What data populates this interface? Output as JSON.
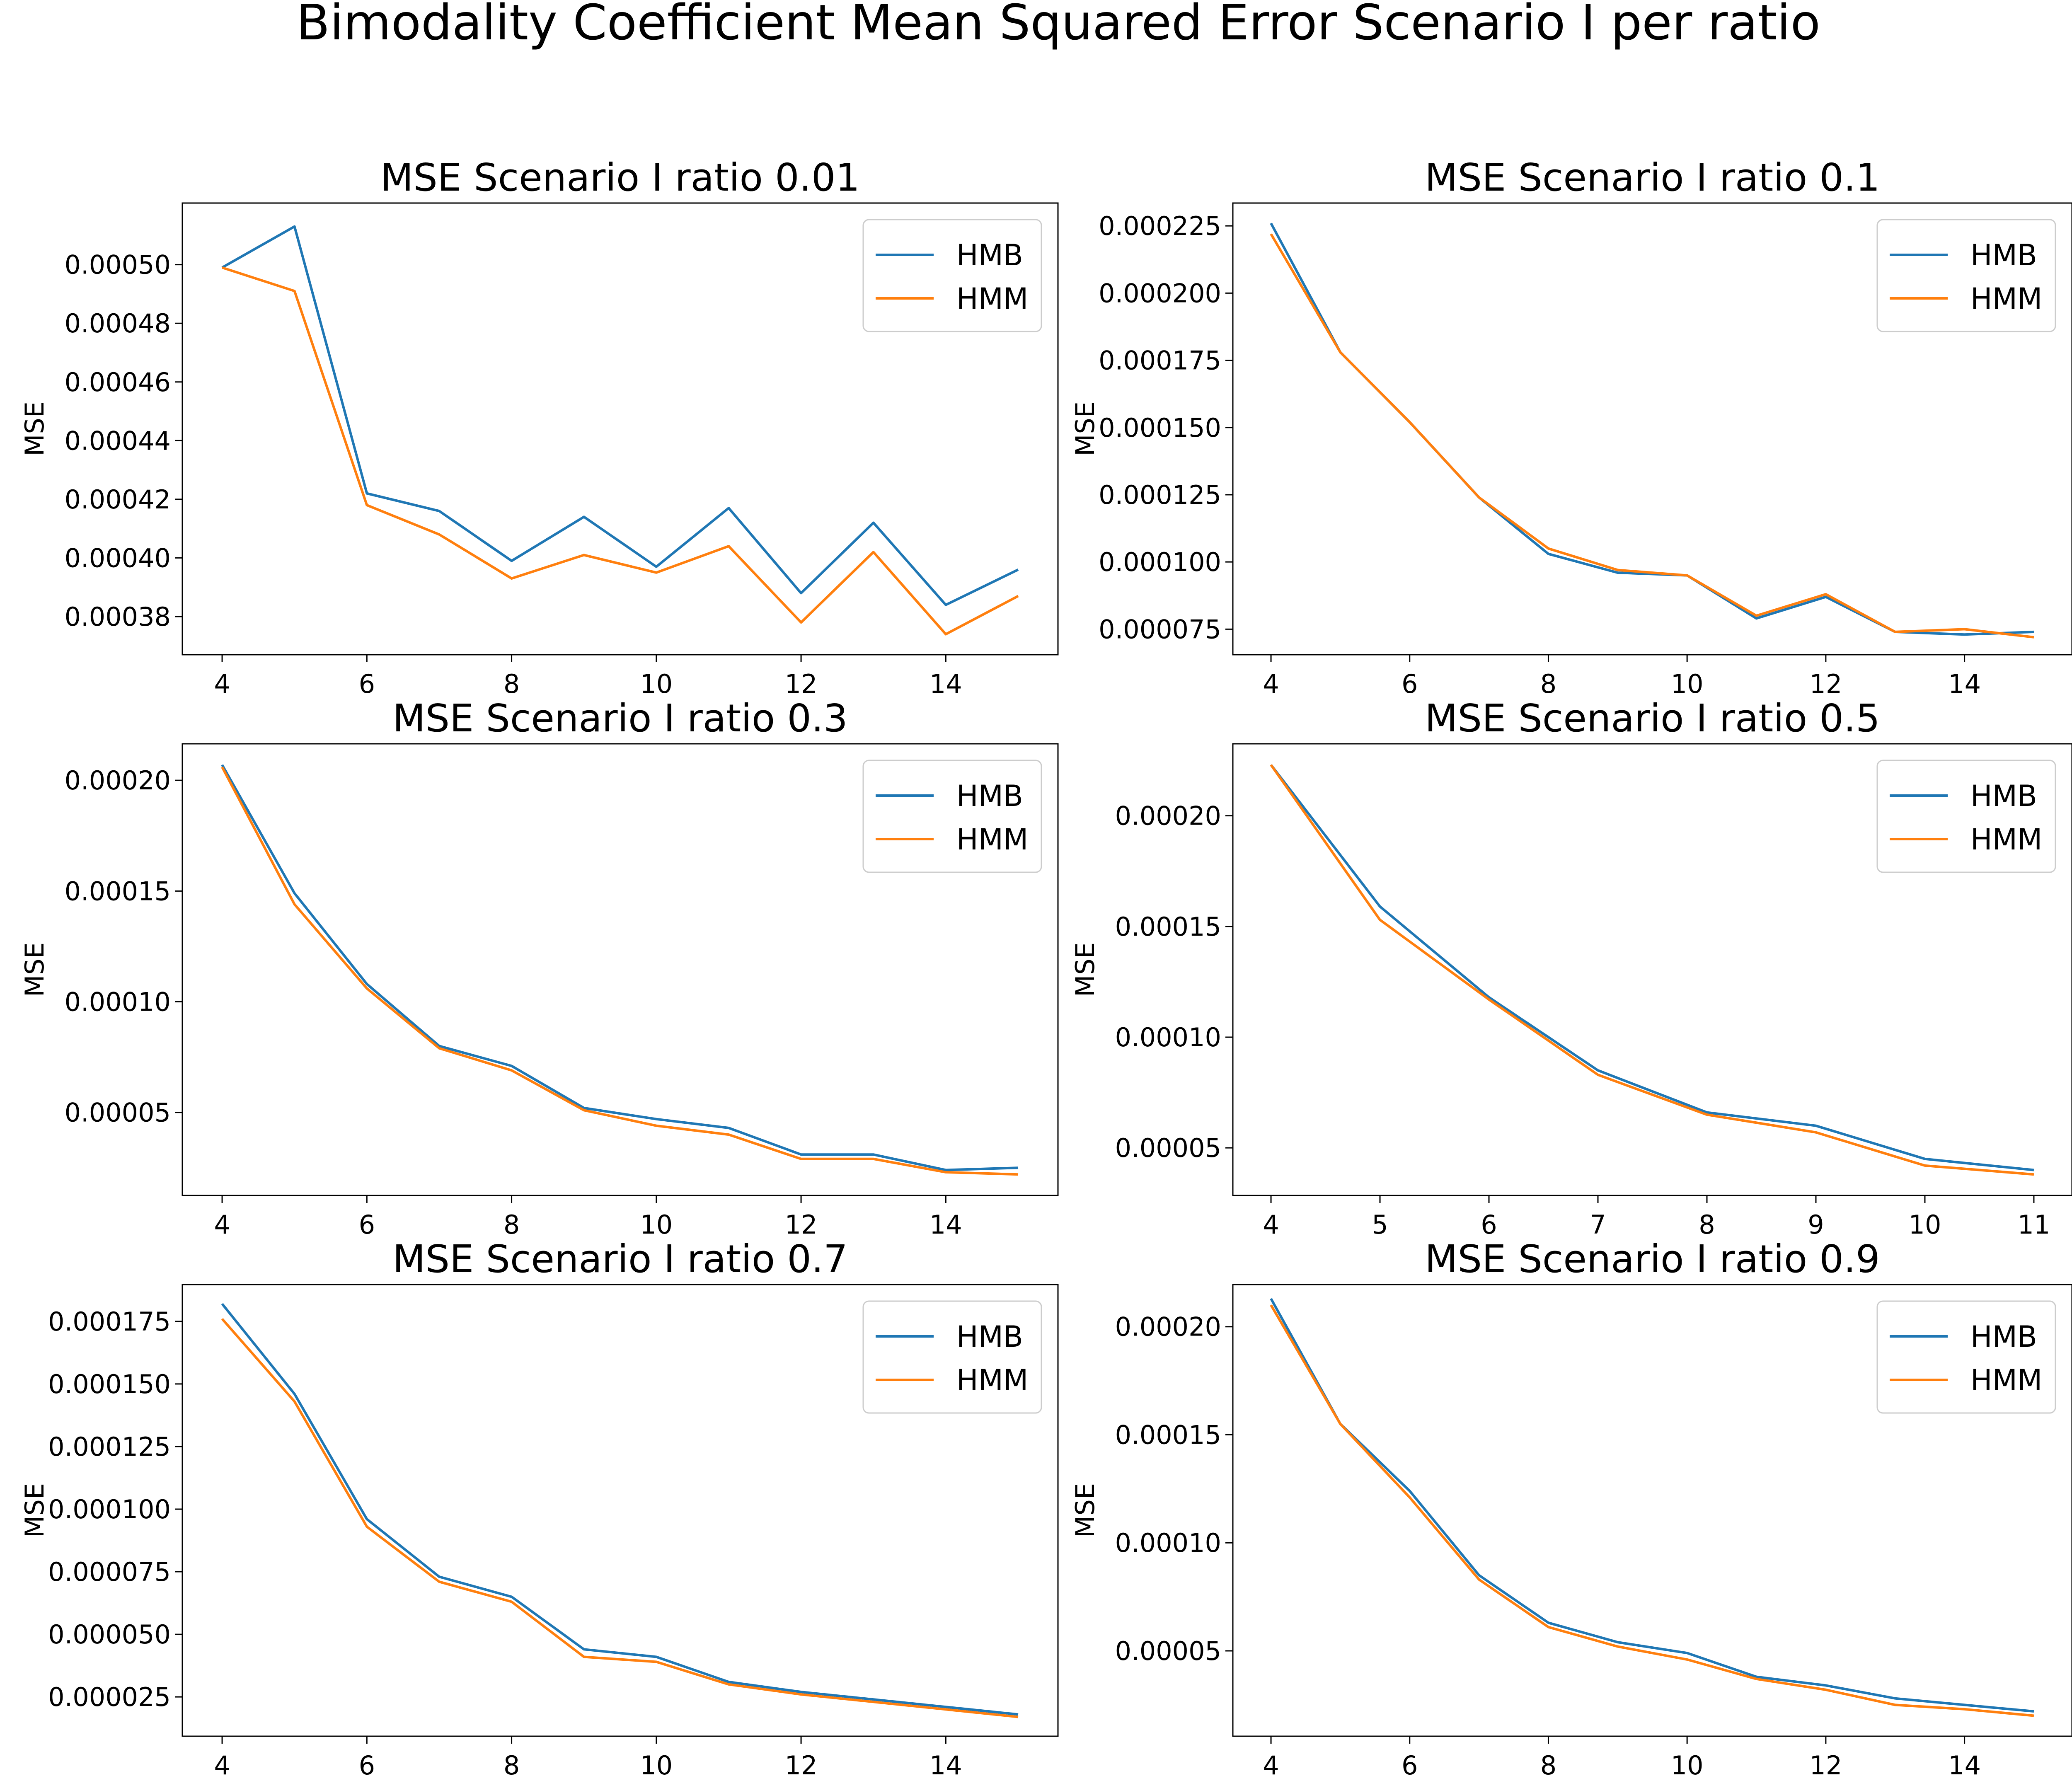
{
  "figure": {
    "title": "Bimodality Coefficient Mean Squared Error Scenario I per ratio"
  },
  "colors": {
    "HMB": "#1f77b4",
    "HMM": "#ff7f0e"
  },
  "chart_data": [
    {
      "type": "line",
      "title": "MSE Scenario I ratio 0.01",
      "xlabel": "",
      "ylabel": "MSE",
      "x": [
        4,
        5,
        6,
        7,
        8,
        9,
        10,
        11,
        12,
        13,
        14,
        15
      ],
      "xlim": [
        3.45,
        15.55
      ],
      "ylim": [
        0.000367,
        0.000521
      ],
      "xticks": [
        4,
        6,
        8,
        10,
        12,
        14
      ],
      "yticks": [
        "0.00038",
        "0.00040",
        "0.00042",
        "0.00044",
        "0.00046",
        "0.00048",
        "0.00050"
      ],
      "legend": "upper right",
      "series": [
        {
          "name": "HMB",
          "values": [
            0.000499,
            0.000513,
            0.000422,
            0.000416,
            0.000399,
            0.000414,
            0.000397,
            0.000417,
            0.000388,
            0.000412,
            0.000384,
            0.000396
          ]
        },
        {
          "name": "HMM",
          "values": [
            0.000499,
            0.000491,
            0.000418,
            0.000408,
            0.000393,
            0.000401,
            0.000395,
            0.000404,
            0.000378,
            0.000402,
            0.000374,
            0.000387
          ]
        }
      ]
    },
    {
      "type": "line",
      "title": "MSE Scenario I ratio 0.1",
      "xlabel": "",
      "ylabel": "MSE",
      "x": [
        4,
        5,
        6,
        7,
        8,
        9,
        10,
        11,
        12,
        13,
        14,
        15
      ],
      "xlim": [
        3.45,
        15.55
      ],
      "ylim": [
        6.55e-05,
        0.0002335
      ],
      "xticks": [
        4,
        6,
        8,
        10,
        12,
        14
      ],
      "yticks": [
        "0.000075",
        "0.000100",
        "0.000125",
        "0.000150",
        "0.000175",
        "0.000200",
        "0.000225"
      ],
      "legend": "upper right",
      "series": [
        {
          "name": "HMB",
          "values": [
            0.000226,
            0.000178,
            0.000152,
            0.000124,
            0.000103,
            9.6e-05,
            9.5e-05,
            7.9e-05,
            8.7e-05,
            7.4e-05,
            7.3e-05,
            7.4e-05
          ]
        },
        {
          "name": "HMM",
          "values": [
            0.000222,
            0.000178,
            0.000152,
            0.000124,
            0.000105,
            9.7e-05,
            9.5e-05,
            8e-05,
            8.8e-05,
            7.4e-05,
            7.5e-05,
            7.2e-05
          ]
        }
      ]
    },
    {
      "type": "line",
      "title": "MSE Scenario I ratio 0.3",
      "xlabel": "",
      "ylabel": "MSE",
      "x": [
        4,
        5,
        6,
        7,
        8,
        9,
        10,
        11,
        12,
        13,
        14,
        15
      ],
      "xlim": [
        3.45,
        15.55
      ],
      "ylim": [
        1.25e-05,
        0.0002165
      ],
      "xticks": [
        4,
        6,
        8,
        10,
        12,
        14
      ],
      "yticks": [
        "0.00005",
        "0.00010",
        "0.00015",
        "0.00020"
      ],
      "legend": "upper right",
      "series": [
        {
          "name": "HMB",
          "values": [
            0.000207,
            0.000149,
            0.000108,
            8e-05,
            7.1e-05,
            5.2e-05,
            4.7e-05,
            4.3e-05,
            3.1e-05,
            3.1e-05,
            2.4e-05,
            2.5e-05
          ]
        },
        {
          "name": "HMM",
          "values": [
            0.000206,
            0.000144,
            0.000106,
            7.9e-05,
            6.9e-05,
            5.1e-05,
            4.4e-05,
            4e-05,
            2.9e-05,
            2.9e-05,
            2.3e-05,
            2.2e-05
          ]
        }
      ]
    },
    {
      "type": "line",
      "title": "MSE Scenario I ratio 0.5",
      "xlabel": "",
      "ylabel": "MSE",
      "x": [
        4,
        5,
        6,
        7,
        8,
        9,
        10,
        11
      ],
      "xlim": [
        3.65,
        11.35
      ],
      "ylim": [
        2.85e-05,
        0.0002325
      ],
      "xticks": [
        4,
        5,
        6,
        7,
        8,
        9,
        10,
        11
      ],
      "yticks": [
        "0.00005",
        "0.00010",
        "0.00015",
        "0.00020"
      ],
      "legend": "upper right",
      "series": [
        {
          "name": "HMB",
          "values": [
            0.000223,
            0.000159,
            0.000118,
            8.5e-05,
            6.6e-05,
            6e-05,
            4.5e-05,
            4e-05
          ]
        },
        {
          "name": "HMM",
          "values": [
            0.000223,
            0.000153,
            0.000117,
            8.3e-05,
            6.5e-05,
            5.7e-05,
            4.2e-05,
            3.8e-05
          ]
        }
      ]
    },
    {
      "type": "line",
      "title": "MSE Scenario I ratio 0.7",
      "xlabel": "",
      "ylabel": "MSE",
      "x": [
        4,
        5,
        6,
        7,
        8,
        9,
        10,
        11,
        12,
        13,
        14,
        15
      ],
      "xlim": [
        3.45,
        15.55
      ],
      "ylim": [
        9.3e-06,
        0.0001897
      ],
      "xticks": [
        4,
        6,
        8,
        10,
        12,
        14
      ],
      "yticks": [
        "0.000025",
        "0.000050",
        "0.000075",
        "0.000100",
        "0.000125",
        "0.000150",
        "0.000175"
      ],
      "legend": "upper right",
      "series": [
        {
          "name": "HMB",
          "values": [
            0.000182,
            0.000146,
            9.6e-05,
            7.3e-05,
            6.5e-05,
            4.4e-05,
            4.1e-05,
            3.1e-05,
            2.7e-05,
            2.4e-05,
            2.1e-05,
            1.8e-05
          ]
        },
        {
          "name": "HMM",
          "values": [
            0.000176,
            0.000143,
            9.3e-05,
            7.1e-05,
            6.3e-05,
            4.1e-05,
            3.9e-05,
            3e-05,
            2.6e-05,
            2.3e-05,
            2e-05,
            1.7e-05
          ]
        }
      ]
    },
    {
      "type": "line",
      "title": "MSE Scenario I ratio 0.9",
      "xlabel": "",
      "ylabel": "MSE",
      "x": [
        4,
        5,
        6,
        7,
        8,
        9,
        10,
        11,
        12,
        13,
        14,
        15
      ],
      "xlim": [
        3.45,
        15.55
      ],
      "ylim": [
        1.05e-05,
        0.0002195
      ],
      "xticks": [
        4,
        6,
        8,
        10,
        12,
        14
      ],
      "yticks": [
        "0.00005",
        "0.00010",
        "0.00015",
        "0.00020"
      ],
      "legend": "upper right",
      "series": [
        {
          "name": "HMB",
          "values": [
            0.000213,
            0.000155,
            0.000124,
            8.5e-05,
            6.3e-05,
            5.4e-05,
            4.9e-05,
            3.8e-05,
            3.4e-05,
            2.8e-05,
            2.5e-05,
            2.2e-05
          ]
        },
        {
          "name": "HMM",
          "values": [
            0.00021,
            0.000155,
            0.000121,
            8.3e-05,
            6.1e-05,
            5.2e-05,
            4.6e-05,
            3.7e-05,
            3.2e-05,
            2.5e-05,
            2.3e-05,
            2e-05
          ]
        }
      ]
    }
  ]
}
